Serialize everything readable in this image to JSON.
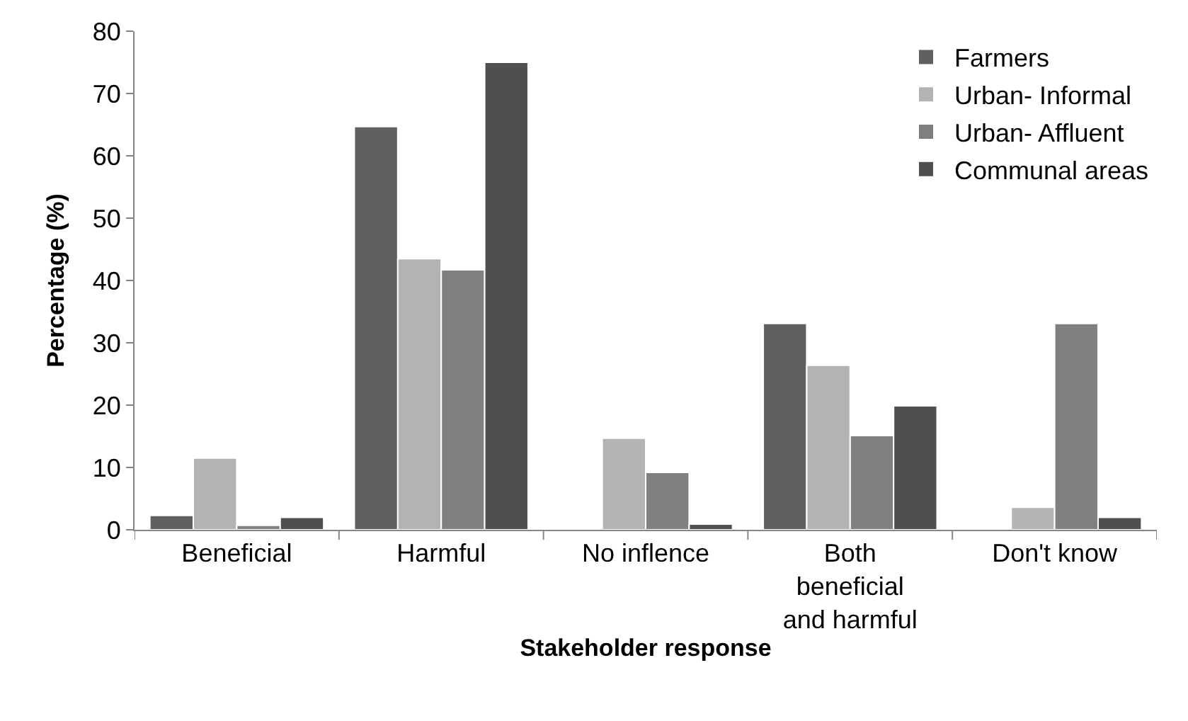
{
  "chart_data": {
    "type": "bar",
    "xlabel": "Stakeholder response",
    "ylabel": "Percentage (%)",
    "categories": [
      "Beneficial",
      "Harmful",
      "No inflence",
      "Both\nbeneficial\nand harmful",
      "Don't know"
    ],
    "series": [
      {
        "name": "Farmers",
        "color": "#606060",
        "values": [
          2.3,
          64.7,
          null,
          33.1,
          null
        ]
      },
      {
        "name": "Urban- Informal",
        "color": "#b3b3b3",
        "values": [
          11.5,
          43.5,
          14.7,
          26.4,
          3.6
        ]
      },
      {
        "name": "Urban- Affluent",
        "color": "#808080",
        "values": [
          0.7,
          41.7,
          9.2,
          15.1,
          33.1
        ]
      },
      {
        "name": "Communal areas",
        "color": "#4f4f4f",
        "values": [
          2.0,
          75.0,
          0.9,
          19.9,
          2.0
        ]
      }
    ],
    "ylim": [
      0,
      80
    ],
    "yticks": [
      0,
      10,
      20,
      30,
      40,
      50,
      60,
      70,
      80
    ],
    "legend": "top right"
  }
}
